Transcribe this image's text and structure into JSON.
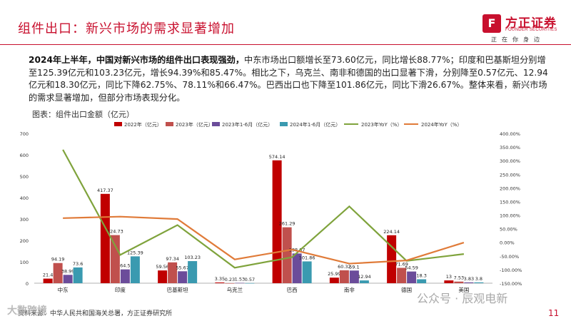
{
  "header": {
    "title": "组件出口：新兴市场的需求显著增加",
    "logo_mark": "F",
    "logo_cn": "方正证券",
    "logo_en": "FOUNDER SECURITIES",
    "tagline": "正在你身边"
  },
  "paragraph": {
    "bold_lead": "2024年上半年，中国对新兴市场的组件出口表现强劲，",
    "body": "中东市场出口额增长至73.60亿元，同比增长88.77%；印度和巴基斯坦分别增至125.39亿元和103.23亿元，增长94.39%和85.47%。相比之下，乌克兰、南非和德国的出口显著下滑，分别降至0.57亿元、12.94亿元和18.30亿元，同比下降62.75%、78.11%和66.47%。巴西出口也下降至101.86亿元，同比下滑26.67%。整体来看，新兴市场的需求显著增加，但部分市场表现分化。"
  },
  "figure": {
    "label": "图表：组件出口金额（亿元）"
  },
  "footer": {
    "source": "资料来源：中华人民共和国海关总署，方正证券研究所",
    "watermark_left": "大数跨境",
    "watermark_right": "公众号 · 辰观电新",
    "page_number": "11"
  },
  "chart_data": {
    "type": "bar",
    "categories": [
      "中东",
      "印度",
      "巴基斯坦",
      "乌克兰",
      "巴西",
      "南非",
      "德国",
      "美国"
    ],
    "series": [
      {
        "name": "2022年（亿元）",
        "color": "#c00000",
        "values": [
          21.4,
          417.37,
          null,
          3.35,
          574.14,
          25.99,
          224.14,
          13
        ]
      },
      {
        "name": "2023年（亿元）",
        "color": "#c0504d",
        "values": [
          94.19,
          224.73,
          97.34,
          0.23,
          261.29,
          60.32,
          71.69,
          7.53
        ]
      },
      {
        "name": "2023年1-6月（亿元）",
        "color": "#6b4c9a",
        "values": [
          38.99,
          64.5,
          55.67,
          1.53,
          138.87,
          59.1,
          54.59,
          3.83
        ]
      },
      {
        "name": "2024年1-6月（亿元）",
        "color": "#3a9ab0",
        "values": [
          73.6,
          125.39,
          103.23,
          0.57,
          101.86,
          12.94,
          18.3,
          3.8
        ]
      }
    ],
    "bar_labels": [
      [
        "21.4",
        "417.37",
        "59.56",
        "3.35",
        "574.14",
        "25.99",
        "224.14",
        "13"
      ],
      [
        "94.19",
        "224.73",
        "97.34",
        "0.23",
        "261.29",
        "60.32",
        "71.69",
        "7.53"
      ],
      [
        "38.99",
        "64.5",
        "55.67",
        "1.53",
        "138.87",
        "59.1",
        "54.59",
        "3.83"
      ],
      [
        "73.6",
        "125.39",
        "103.23",
        "0.57",
        "101.86",
        "12.94",
        "18.3",
        "3.8"
      ]
    ],
    "bar_values_extra": {
      "巴基斯坦_2022": 59.56
    },
    "lines": [
      {
        "name": "2023年YoY（%）",
        "color": "#7fa33c",
        "axis": "right",
        "values": [
          340,
          -46.2,
          63.4,
          -93.1,
          -54.5,
          132,
          -68,
          -43
        ]
      },
      {
        "name": "2024年YoY（%）",
        "color": "#e07b39",
        "axis": "right",
        "values": [
          88.77,
          94.39,
          85.47,
          -62.75,
          -26.67,
          -78.11,
          -66.47,
          -0.8
        ]
      }
    ],
    "y_left": {
      "min": 0,
      "max": 700,
      "ticks": [
        "0",
        "100",
        "200",
        "300",
        "400",
        "500",
        "600",
        "700"
      ]
    },
    "y_right": {
      "min": -150,
      "max": 400,
      "ticks": [
        "-150.00%",
        "-100.00%",
        "-50.00%",
        "0.00%",
        "50.00%",
        "100.00%",
        "150.00%",
        "200.00%",
        "250.00%",
        "300.00%",
        "350.00%",
        "400.00%"
      ]
    },
    "legend_position": "top"
  }
}
